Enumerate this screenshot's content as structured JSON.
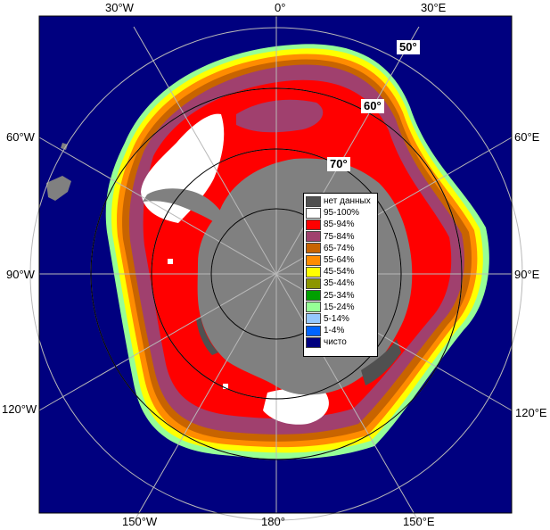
{
  "colors": {
    "ocean": "#00007f",
    "land": "#808080",
    "nodata": "#505050",
    "grid": "#b8b8b8",
    "ice_95_100": "#ffffff",
    "ice_85_94": "#ff0000",
    "ice_75_84": "#a0406e",
    "ice_65_74": "#c86400",
    "ice_55_64": "#ff8c00",
    "ice_45_54": "#ffff00",
    "ice_35_44": "#8c9600",
    "ice_25_34": "#00a000",
    "ice_15_24": "#96ff96",
    "ice_5_14": "#96c8ff",
    "ice_1_4": "#0064ff"
  },
  "longitude_labels": {
    "w30": "30°W",
    "zero": "0°",
    "e30": "30°E",
    "w60": "60°W",
    "e60": "60°E",
    "w90": "90°W",
    "e90": "90°E",
    "w120": "120°W",
    "e120": "120°E",
    "w150": "150°W",
    "lon180": "180°",
    "e150": "150°E"
  },
  "latitude_labels": {
    "lat50": "50°",
    "lat60": "60°",
    "lat70": "70°"
  },
  "legend": {
    "items": [
      {
        "label": "нет данных",
        "color": "#505050"
      },
      {
        "label": "95-100%",
        "color": "#ffffff"
      },
      {
        "label": "85-94%",
        "color": "#ff0000"
      },
      {
        "label": "75-84%",
        "color": "#a0406e"
      },
      {
        "label": "65-74%",
        "color": "#c86400"
      },
      {
        "label": "55-64%",
        "color": "#ff8c00"
      },
      {
        "label": "45-54%",
        "color": "#ffff00"
      },
      {
        "label": "35-44%",
        "color": "#8c9600"
      },
      {
        "label": "25-34%",
        "color": "#00a000"
      },
      {
        "label": "15-24%",
        "color": "#96ff96"
      },
      {
        "label": "5-14%",
        "color": "#96c8ff"
      },
      {
        "label": "1-4%",
        "color": "#0064ff"
      },
      {
        "label": "чисто",
        "color": "#00007f"
      }
    ]
  }
}
